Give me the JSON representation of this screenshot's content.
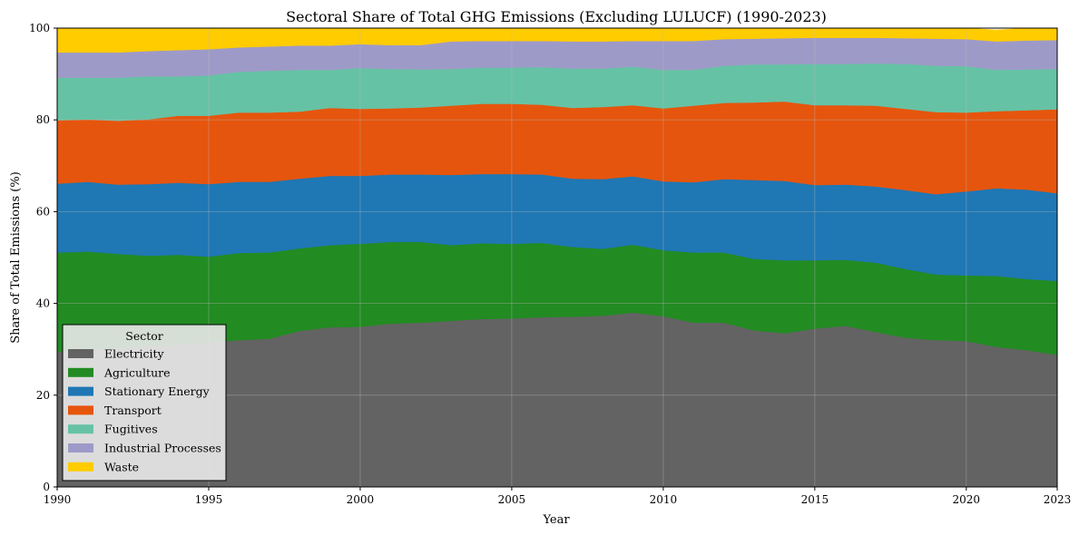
{
  "chart_data": {
    "type": "area",
    "stacked": true,
    "title": "Sectoral Share of Total GHG Emissions (Excluding LULUCF) (1990-2023)",
    "xlabel": "Year",
    "ylabel": "Share of Total Emissions (%)",
    "xlim": [
      1990,
      2023
    ],
    "ylim": [
      0,
      100
    ],
    "xticks": [
      "1990",
      "1995",
      "2000",
      "2005",
      "2010",
      "2015",
      "2020",
      "2023"
    ],
    "yticks": [
      "0",
      "20",
      "40",
      "60",
      "80",
      "100"
    ],
    "grid": true,
    "legend": {
      "title": "Sector",
      "placement": "lower-left"
    },
    "x": [
      1990,
      1991,
      1992,
      1993,
      1994,
      1995,
      1996,
      1997,
      1998,
      1999,
      2000,
      2001,
      2002,
      2003,
      2004,
      2005,
      2006,
      2007,
      2008,
      2009,
      2010,
      2011,
      2012,
      2013,
      2014,
      2015,
      2016,
      2017,
      2018,
      2019,
      2020,
      2021,
      2022,
      2023
    ],
    "series": [
      {
        "name": "Electricity",
        "color": "#636363",
        "values": [
          29.5,
          29.8,
          30.2,
          30.6,
          31.0,
          31.5,
          32.0,
          32.3,
          34.0,
          34.8,
          34.9,
          35.6,
          35.8,
          36.2,
          36.6,
          36.7,
          37.0,
          37.1,
          37.3,
          38.0,
          37.2,
          35.8,
          35.8,
          34.1,
          33.5,
          34.5,
          35.1,
          33.8,
          32.5,
          32.0,
          31.8,
          30.5,
          29.8,
          28.8
        ]
      },
      {
        "name": "Agriculture",
        "color": "#228b22",
        "values": [
          21.6,
          21.5,
          20.6,
          19.8,
          19.6,
          18.7,
          19.0,
          18.8,
          18.0,
          17.9,
          18.1,
          17.8,
          17.6,
          16.5,
          16.5,
          16.3,
          16.2,
          15.2,
          14.6,
          14.8,
          14.4,
          15.3,
          15.3,
          15.6,
          15.9,
          14.9,
          14.4,
          15.1,
          15.0,
          14.3,
          14.3,
          15.5,
          15.5,
          16.1
        ]
      },
      {
        "name": "Stationary Energy",
        "color": "#1f77b4",
        "values": [
          15.0,
          15.2,
          15.1,
          15.6,
          15.7,
          15.8,
          15.5,
          15.4,
          15.2,
          15.1,
          14.8,
          14.7,
          14.7,
          15.3,
          15.1,
          15.2,
          14.9,
          14.9,
          15.2,
          14.9,
          15.0,
          15.3,
          16.0,
          17.2,
          17.3,
          16.4,
          16.4,
          16.6,
          17.2,
          17.5,
          18.3,
          19.1,
          19.5,
          19.1
        ]
      },
      {
        "name": "Transport",
        "color": "#e6550d",
        "values": [
          13.8,
          13.6,
          13.9,
          14.1,
          14.6,
          14.9,
          15.1,
          15.1,
          14.6,
          14.8,
          14.6,
          14.4,
          14.6,
          15.1,
          15.3,
          15.3,
          15.2,
          15.4,
          15.7,
          15.5,
          15.9,
          16.7,
          16.6,
          16.9,
          17.3,
          17.4,
          17.3,
          17.6,
          17.7,
          17.9,
          17.2,
          16.8,
          17.3,
          18.3
        ]
      },
      {
        "name": "Fugitives",
        "color": "#66c2a4",
        "values": [
          9.3,
          9.1,
          9.4,
          9.4,
          8.6,
          8.8,
          8.9,
          9.1,
          9.1,
          8.3,
          8.9,
          8.6,
          8.3,
          8.0,
          7.9,
          7.9,
          8.2,
          8.6,
          8.4,
          8.4,
          8.4,
          7.8,
          8.1,
          8.3,
          8.1,
          9.0,
          9.0,
          9.2,
          9.8,
          10.1,
          10.1,
          9.0,
          8.9,
          8.8
        ]
      },
      {
        "name": "Industrial Processes",
        "color": "#9e9ac8",
        "values": [
          5.5,
          5.5,
          5.5,
          5.5,
          5.7,
          5.7,
          5.3,
          5.3,
          5.3,
          5.3,
          5.2,
          5.2,
          5.3,
          6.0,
          5.8,
          5.8,
          5.7,
          5.9,
          5.9,
          5.6,
          6.3,
          6.3,
          5.8,
          5.6,
          5.7,
          5.7,
          5.7,
          5.6,
          5.6,
          5.9,
          5.9,
          6.2,
          6.3,
          6.3
        ]
      },
      {
        "name": "Waste",
        "color": "#ffcc00",
        "values": [
          5.3,
          5.3,
          5.3,
          5.0,
          4.8,
          4.6,
          4.2,
          4.0,
          3.8,
          3.8,
          3.5,
          3.7,
          3.7,
          2.9,
          2.8,
          2.8,
          2.8,
          2.9,
          2.9,
          2.8,
          2.8,
          2.8,
          2.4,
          2.3,
          2.2,
          2.1,
          2.1,
          2.1,
          2.2,
          2.3,
          2.4,
          2.5,
          2.7,
          2.6
        ]
      }
    ]
  }
}
